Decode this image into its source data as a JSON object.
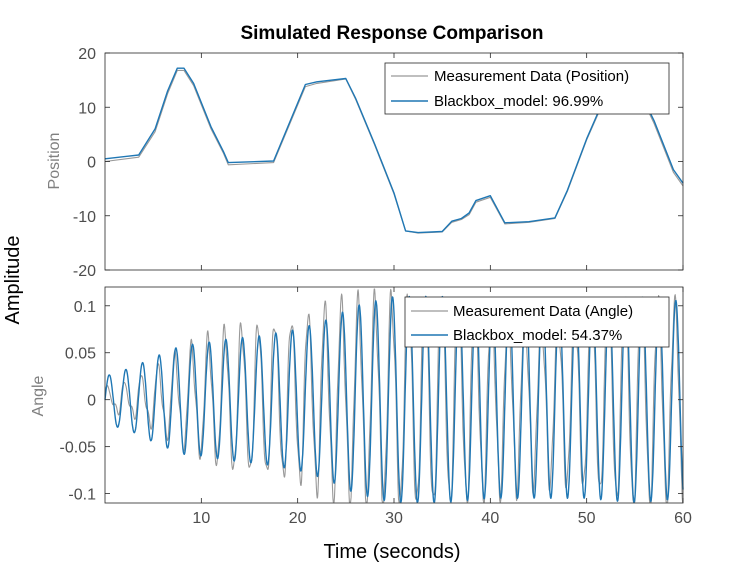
{
  "figure": {
    "title": "Simulated Response Comparison",
    "xlabel": "Time (seconds)",
    "ylabel": "Amplitude"
  },
  "chart_data": [
    {
      "type": "line",
      "ylabel": "Position",
      "xlim": [
        0,
        60
      ],
      "ylim": [
        -20,
        20
      ],
      "xticks": [
        10,
        20,
        30,
        40,
        50,
        60
      ],
      "yticks": [
        -20,
        -10,
        0,
        10,
        20
      ],
      "grid": false,
      "legend_position": "top-right",
      "series": [
        {
          "name": "Measurement Data (Position)",
          "color": "#999999",
          "points": [
            [
              0,
              0
            ],
            [
              3.5,
              0.8
            ],
            [
              5.2,
              5.5
            ],
            [
              6.5,
              12.5
            ],
            [
              7.5,
              16.8
            ],
            [
              8.2,
              16.8
            ],
            [
              9.2,
              14
            ],
            [
              11,
              6
            ],
            [
              12.3,
              1.5
            ],
            [
              12.8,
              -0.6
            ],
            [
              17.5,
              -0.2
            ],
            [
              20.8,
              13.8
            ],
            [
              22,
              14.4
            ],
            [
              25,
              15.2
            ],
            [
              26,
              11.5
            ],
            [
              28,
              3
            ],
            [
              30,
              -6
            ],
            [
              31.2,
              -12.8
            ],
            [
              32.5,
              -13.2
            ],
            [
              35,
              -13
            ],
            [
              36,
              -11.2
            ],
            [
              37,
              -10.7
            ],
            [
              37.8,
              -9.8
            ],
            [
              38.5,
              -7.5
            ],
            [
              40,
              -6.6
            ],
            [
              41.5,
              -11.5
            ],
            [
              44,
              -11.2
            ],
            [
              46.7,
              -10.5
            ],
            [
              48,
              -5.5
            ],
            [
              50,
              4
            ],
            [
              51.5,
              10
            ],
            [
              53.5,
              14
            ],
            [
              55,
              14.5
            ],
            [
              57,
              7
            ],
            [
              59,
              -2
            ],
            [
              60,
              -4.5
            ]
          ]
        },
        {
          "name": "Blackbox_model: 96.99%",
          "color": "#1f77b4",
          "points": [
            [
              0,
              0.5
            ],
            [
              3.5,
              1.2
            ],
            [
              5.2,
              6
            ],
            [
              6.5,
              13
            ],
            [
              7.5,
              17.2
            ],
            [
              8.2,
              17.2
            ],
            [
              9.2,
              14.4
            ],
            [
              11,
              6.4
            ],
            [
              12.3,
              1.8
            ],
            [
              12.8,
              -0.2
            ],
            [
              17.5,
              0.1
            ],
            [
              20.8,
              14.2
            ],
            [
              22,
              14.7
            ],
            [
              25,
              15.3
            ],
            [
              26,
              11.7
            ],
            [
              28,
              3.2
            ],
            [
              30,
              -5.8
            ],
            [
              31.2,
              -12.8
            ],
            [
              32.5,
              -13.1
            ],
            [
              35,
              -12.9
            ],
            [
              36,
              -11
            ],
            [
              37,
              -10.5
            ],
            [
              37.8,
              -9.5
            ],
            [
              38.5,
              -7.2
            ],
            [
              40,
              -6.3
            ],
            [
              41.5,
              -11.3
            ],
            [
              44,
              -11.1
            ],
            [
              46.7,
              -10.4
            ],
            [
              48,
              -5.3
            ],
            [
              50,
              4.2
            ],
            [
              51.5,
              10.3
            ],
            [
              53.5,
              14.3
            ],
            [
              55,
              14.8
            ],
            [
              57,
              7.5
            ],
            [
              59,
              -1.5
            ],
            [
              60,
              -4
            ]
          ]
        }
      ]
    },
    {
      "type": "line",
      "ylabel": "Angle",
      "xlim": [
        0,
        60
      ],
      "ylim": [
        -0.11,
        0.12
      ],
      "xticks": [
        10,
        20,
        30,
        40,
        50,
        60
      ],
      "yticks": [
        -0.1,
        -0.05,
        0,
        0.05,
        0.1
      ],
      "grid": false,
      "legend_position": "top-right",
      "series": [
        {
          "name": "Measurement Data (Angle)",
          "color": "#999999",
          "note_period_s": 1.73,
          "envelope": [
            [
              0,
              0.01
            ],
            [
              3,
              0.018
            ],
            [
              5,
              0.03
            ],
            [
              8,
              0.05
            ],
            [
              10,
              0.06
            ],
            [
              13,
              0.075
            ],
            [
              16,
              0.08
            ],
            [
              20,
              0.085
            ],
            [
              23,
              0.1
            ],
            [
              26,
              0.105
            ],
            [
              30,
              0.11
            ],
            [
              35,
              0.11
            ],
            [
              40,
              0.1
            ],
            [
              45,
              0.085
            ],
            [
              50,
              0.09
            ],
            [
              55,
              0.11
            ],
            [
              60,
              0.105
            ]
          ]
        },
        {
          "name": "Blackbox_model: 54.37%",
          "color": "#1f77b4",
          "note_period_s": 1.73,
          "envelope": [
            [
              0,
              0.025
            ],
            [
              3,
              0.035
            ],
            [
              5,
              0.045
            ],
            [
              8,
              0.058
            ],
            [
              10,
              0.06
            ],
            [
              13,
              0.065
            ],
            [
              16,
              0.068
            ],
            [
              20,
              0.075
            ],
            [
              23,
              0.085
            ],
            [
              26,
              0.1
            ],
            [
              30,
              0.11
            ],
            [
              35,
              0.11
            ],
            [
              40,
              0.105
            ],
            [
              45,
              0.105
            ],
            [
              50,
              0.105
            ],
            [
              55,
              0.11
            ],
            [
              60,
              0.105
            ]
          ]
        }
      ]
    }
  ]
}
